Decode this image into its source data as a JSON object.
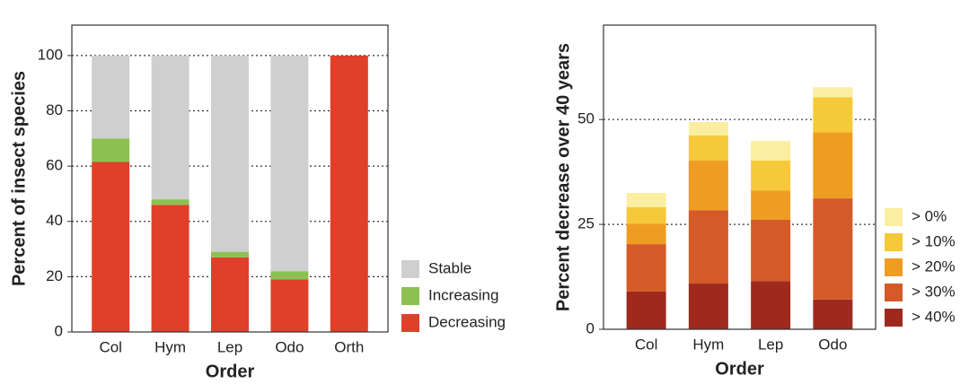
{
  "chart_data": [
    {
      "type": "stacked-bar",
      "x_label": "Order",
      "y_label": "Percent of insect species",
      "categories": [
        "Col",
        "Hym",
        "Lep",
        "Odo",
        "Orth"
      ],
      "series": [
        {
          "name": "Stable",
          "color": "#cfcfcf",
          "values": [
            30,
            52,
            71,
            78,
            0
          ]
        },
        {
          "name": "Increasing",
          "color": "#8cc152",
          "values": [
            8.5,
            2,
            2,
            3,
            0
          ]
        },
        {
          "name": "Decreasing",
          "color": "#e0402a",
          "values": [
            61.5,
            46,
            27,
            19,
            100
          ]
        }
      ],
      "ylim": [
        0,
        111
      ],
      "yticks": [
        0,
        20,
        40,
        60,
        80,
        100
      ],
      "grid": true
    },
    {
      "type": "stacked-bar",
      "x_label": "Order",
      "y_label": "Percent decrease over 40 years",
      "categories": [
        "Col",
        "Hym",
        "Lep",
        "Odo"
      ],
      "series": [
        {
          "name": "> 0%",
          "color": "#fbeea0",
          "values": [
            3.4,
            3.2,
            4.7,
            2.4
          ]
        },
        {
          "name": "> 10%",
          "color": "#f5c93a",
          "values": [
            3.9,
            6,
            7.1,
            8.3
          ]
        },
        {
          "name": "> 20%",
          "color": "#ef9d22",
          "values": [
            4.9,
            11.8,
            7,
            15.8
          ]
        },
        {
          "name": "> 30%",
          "color": "#d45a28",
          "values": [
            11.3,
            17.5,
            14.6,
            24.1
          ]
        },
        {
          "name": "> 40%",
          "color": "#9e2a1e",
          "values": [
            9,
            10.9,
            11.5,
            7.1
          ]
        }
      ],
      "ylim": [
        0,
        72.5
      ],
      "yticks": [
        0,
        25,
        50
      ],
      "grid": true
    }
  ]
}
